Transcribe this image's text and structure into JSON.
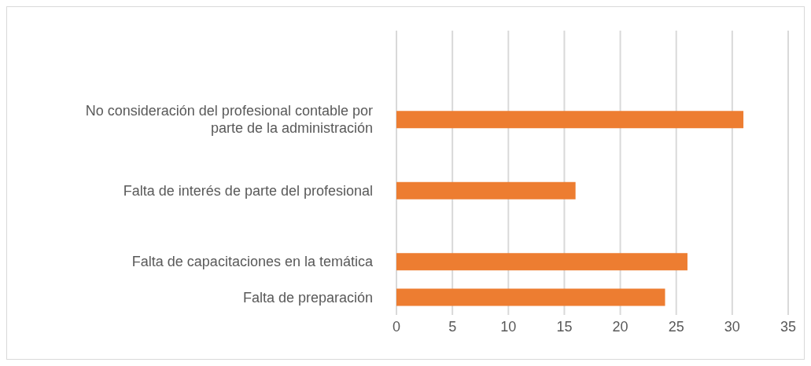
{
  "chart_data": {
    "type": "bar",
    "orientation": "horizontal",
    "categories": [
      null,
      null,
      "No consideración del profesional contable por parte de la administración",
      null,
      "Falta de interés de parte del profesional",
      null,
      "Falta de capacitaciones en la temática",
      "Falta de preparación"
    ],
    "values": [
      null,
      null,
      31,
      null,
      16,
      null,
      26,
      24
    ],
    "color": "#ed7d31",
    "xlim": [
      0,
      35
    ],
    "xticks": [
      0,
      5,
      10,
      15,
      20,
      25,
      30,
      35
    ],
    "grid": "x"
  }
}
